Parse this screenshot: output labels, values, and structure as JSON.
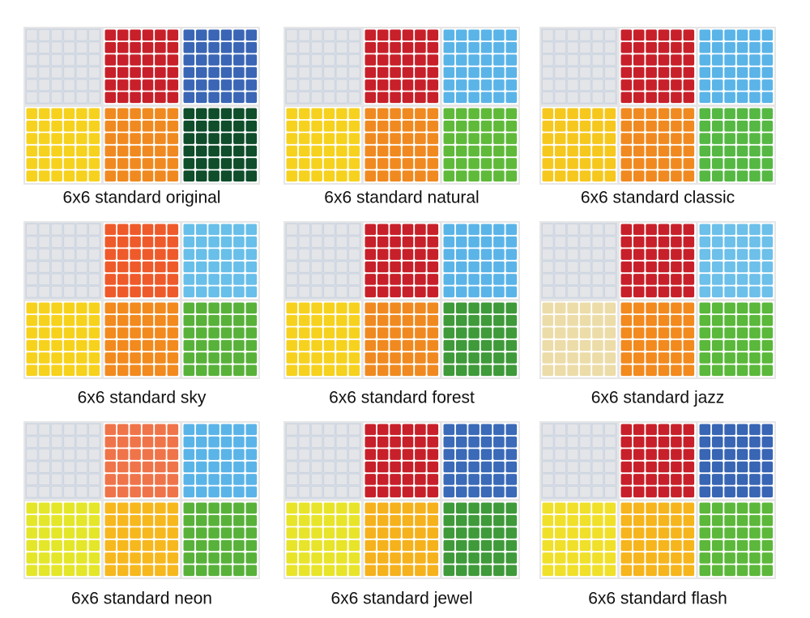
{
  "items": [
    {
      "label": "6x6 standard original",
      "face_colors": [
        "#e4e5e8",
        "#c8202a",
        "#3a66b5",
        "#f6d21e",
        "#f08a20",
        "#0f4d2b"
      ]
    },
    {
      "label": "6x6 standard natural",
      "face_colors": [
        "#e4e5e8",
        "#c8202a",
        "#5ab4e8",
        "#f6d21e",
        "#f08a20",
        "#5fba3a"
      ]
    },
    {
      "label": "6x6 standard classic",
      "face_colors": [
        "#e4e5e8",
        "#c8202a",
        "#5ab4e8",
        "#f6c81e",
        "#f08a20",
        "#55b843"
      ]
    },
    {
      "label": "6x6 standard sky",
      "face_colors": [
        "#e4e5e8",
        "#ef5a2a",
        "#68bfe9",
        "#f7d21c",
        "#f28a1e",
        "#58b23a"
      ]
    },
    {
      "label": "6x6 standard forest",
      "face_colors": [
        "#e4e5e8",
        "#c8202a",
        "#5ab4e8",
        "#f6d21e",
        "#f08a20",
        "#3f9a3a"
      ]
    },
    {
      "label": "6x6 standard jazz",
      "face_colors": [
        "#e4e5e8",
        "#c8202a",
        "#6cc0ea",
        "#ecdca8",
        "#f28a1e",
        "#5ab83a"
      ]
    },
    {
      "label": "6x6 standard neon",
      "face_colors": [
        "#e4e5e8",
        "#f0744a",
        "#5ab4e8",
        "#e4e62a",
        "#f7b81e",
        "#58b23a"
      ]
    },
    {
      "label": "6x6 standard jewel",
      "face_colors": [
        "#e4e5e8",
        "#c8202a",
        "#3a6ab8",
        "#e8e42a",
        "#f6b21c",
        "#3f9a3a"
      ]
    },
    {
      "label": "6x6 standard flash",
      "face_colors": [
        "#e4e5e8",
        "#c8202a",
        "#3865b4",
        "#f0e02a",
        "#f6b51c",
        "#5cb83a"
      ]
    }
  ]
}
